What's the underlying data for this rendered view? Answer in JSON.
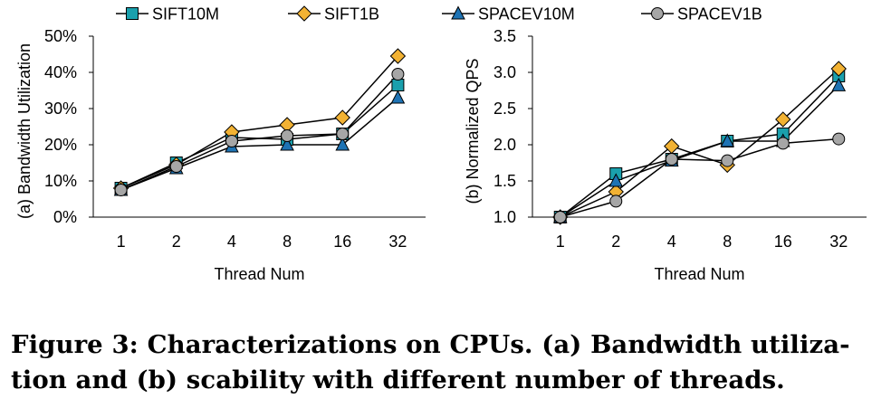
{
  "caption": {
    "line1": "Figure 3: Characterizations on CPUs. (a) Bandwidth utiliza-",
    "line2": "tion and (b) scability with different number of threads."
  },
  "legend": [
    {
      "name": "SIFT10M",
      "marker": "square",
      "color": "#1aa0ad"
    },
    {
      "name": "SIFT1B",
      "marker": "diamond",
      "color": "#f2b233"
    },
    {
      "name": "SPACEV10M",
      "marker": "triangle",
      "color": "#1e73b4"
    },
    {
      "name": "SPACEV1B",
      "marker": "circle",
      "color": "#a6a6a6"
    }
  ],
  "chart_data": [
    {
      "type": "line",
      "ylabel": "(a) Bandwidth Utilization",
      "xlabel": "Thread Num",
      "categories": [
        "1",
        "2",
        "4",
        "8",
        "16",
        "32"
      ],
      "ylim": [
        0,
        50
      ],
      "yticks": [
        "0%",
        "10%",
        "20%",
        "30%",
        "40%",
        "50%"
      ],
      "grid": false,
      "series": [
        {
          "name": "SIFT10M",
          "values": [
            8,
            15,
            22,
            21.5,
            23,
            36.5
          ]
        },
        {
          "name": "SIFT1B",
          "values": [
            8,
            14.5,
            23.5,
            25.5,
            27.5,
            44.5
          ]
        },
        {
          "name": "SPACEV10M",
          "values": [
            7.5,
            13.5,
            19.5,
            20,
            20,
            33
          ]
        },
        {
          "name": "SPACEV1B",
          "values": [
            7.5,
            14,
            21,
            22.5,
            23,
            39.5
          ]
        }
      ]
    },
    {
      "type": "line",
      "ylabel": "(b) Normalized QPS",
      "xlabel": "Thread Num",
      "categories": [
        "1",
        "2",
        "4",
        "8",
        "16",
        "32"
      ],
      "ylim": [
        1.0,
        3.5
      ],
      "yticks": [
        "1.0",
        "1.5",
        "2.0",
        "2.5",
        "3.0",
        "3.5"
      ],
      "grid": false,
      "series": [
        {
          "name": "SIFT10M",
          "values": [
            1.0,
            1.6,
            1.8,
            2.05,
            2.15,
            2.95
          ]
        },
        {
          "name": "SIFT1B",
          "values": [
            1.0,
            1.35,
            1.98,
            1.72,
            2.35,
            3.05
          ]
        },
        {
          "name": "SPACEV10M",
          "values": [
            1.0,
            1.5,
            1.78,
            2.05,
            2.05,
            2.82
          ]
        },
        {
          "name": "SPACEV1B",
          "values": [
            1.0,
            1.22,
            1.8,
            1.78,
            2.02,
            2.08
          ]
        }
      ]
    }
  ]
}
